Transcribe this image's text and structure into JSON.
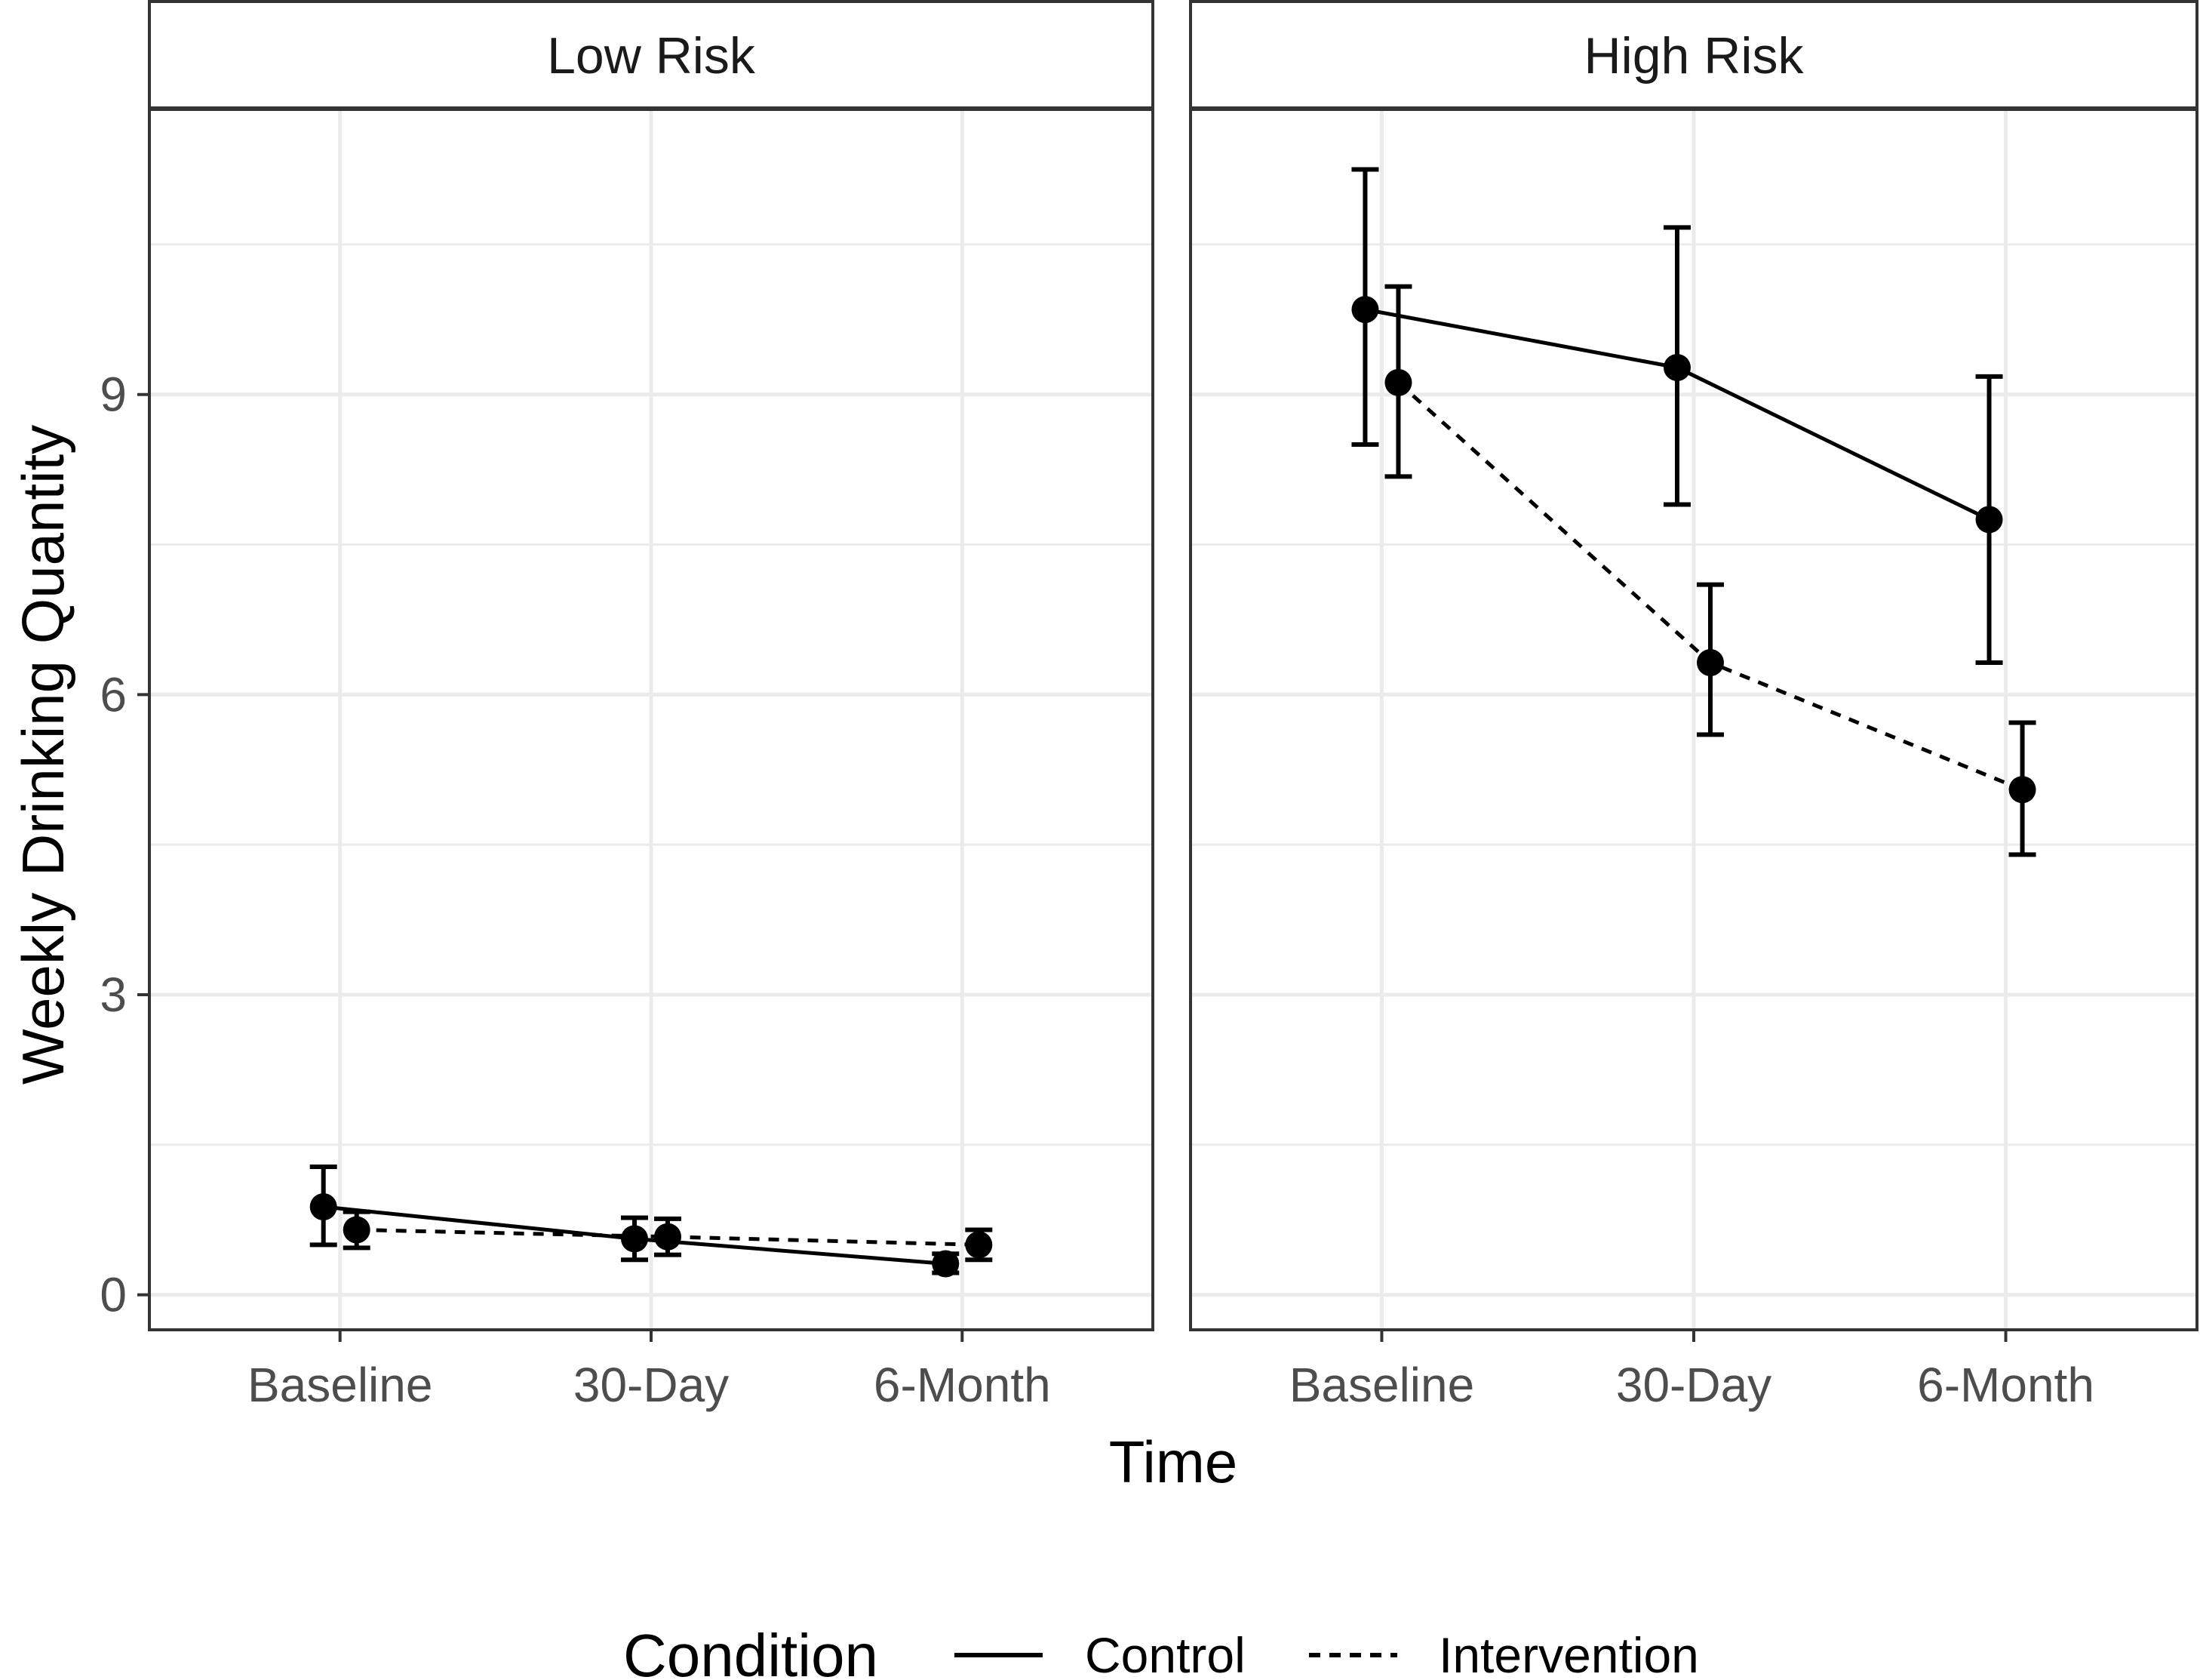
{
  "chart_data": {
    "type": "line",
    "facets": [
      {
        "label": "Low Risk",
        "series": [
          {
            "name": "Control",
            "values": [
              0.88,
              0.56,
              0.31
            ],
            "lower": [
              0.5,
              0.35,
              0.22
            ],
            "upper": [
              1.28,
              0.77,
              0.41
            ]
          },
          {
            "name": "Intervention",
            "values": [
              0.65,
              0.58,
              0.5
            ],
            "lower": [
              0.47,
              0.4,
              0.35
            ],
            "upper": [
              0.83,
              0.76,
              0.65
            ]
          }
        ]
      },
      {
        "label": "High Risk",
        "series": [
          {
            "name": "Control",
            "values": [
              9.85,
              9.27,
              7.75
            ],
            "lower": [
              8.5,
              7.9,
              6.32
            ],
            "upper": [
              11.25,
              10.67,
              9.18
            ]
          },
          {
            "name": "Intervention",
            "values": [
              9.12,
              6.32,
              5.05
            ],
            "lower": [
              8.18,
              5.6,
              4.4
            ],
            "upper": [
              10.08,
              7.1,
              5.72
            ]
          }
        ]
      }
    ],
    "categories": [
      "Baseline",
      "30-Day",
      "6-Month"
    ],
    "ylabel": "Weekly Drinking Quantity",
    "xlabel": "Time",
    "yticks": [
      0,
      3,
      6,
      9
    ],
    "ylim": [
      -0.35,
      11.85
    ],
    "legend": {
      "title": "Condition",
      "position": "bottom",
      "entries": [
        {
          "name": "Control",
          "linetype": "solid"
        },
        {
          "name": "Intervention",
          "linetype": "dashed"
        }
      ]
    },
    "colors": {
      "line": "#000000",
      "grid": "#ebebeb",
      "border": "#333333",
      "strip_fill": "#ffffff"
    }
  }
}
